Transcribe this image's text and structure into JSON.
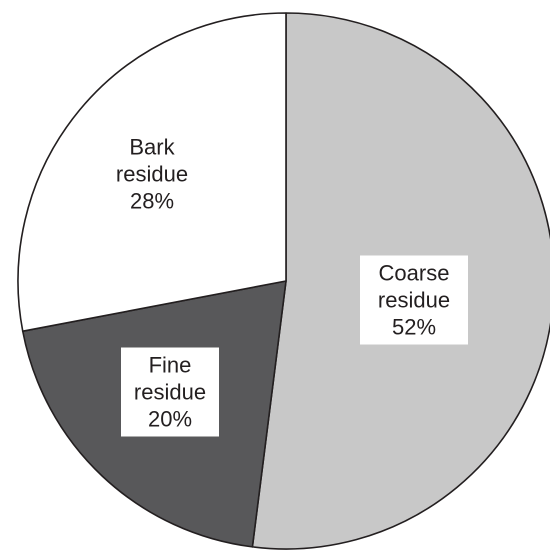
{
  "chart_data": {
    "type": "pie",
    "slices": [
      {
        "label": "Coarse residue",
        "label_lines": [
          "Coarse",
          "residue"
        ],
        "value": 52,
        "value_label": "52%",
        "color": "#c8c8c8"
      },
      {
        "label": "Fine residue",
        "label_lines": [
          "Fine",
          "residue"
        ],
        "value": 20,
        "value_label": "20%",
        "color": "#58585a"
      },
      {
        "label": "Bark residue",
        "label_lines": [
          "Bark",
          "residue"
        ],
        "value": 28,
        "value_label": "28%",
        "color": "#ffffff"
      }
    ],
    "start_angle_deg": 0,
    "direction": "clockwise",
    "legend": "none"
  }
}
